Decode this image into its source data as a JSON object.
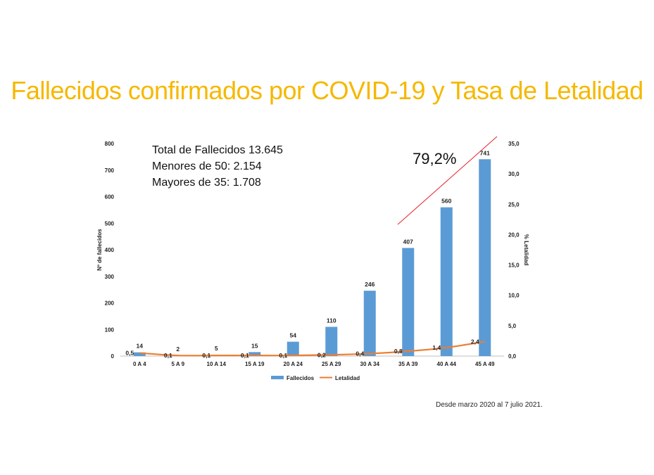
{
  "title": "Fallecidos confirmados por COVID-19 y Tasa de Letalidad",
  "source_note": "Desde marzo 2020 al 7 julio 2021.",
  "annotations": {
    "total": "Total de Fallecidos 13.645",
    "menores": "Menores de 50: 2.154",
    "mayores": "Mayores de 35: 1.708",
    "growth": "79,2%"
  },
  "colors": {
    "title": "#f5b800",
    "bars": "#5b9bd5",
    "line": "#ed7d31",
    "trend": "#e8202a"
  },
  "chart_data": {
    "type": "bar",
    "categories": [
      "0 A 4",
      "5 A 9",
      "10 A 14",
      "15 A 19",
      "20 A 24",
      "25 A 29",
      "30 A 34",
      "35 A 39",
      "40 A 44",
      "45 A 49"
    ],
    "ylabel": "Nº de fallecidos",
    "y2label": "% Letalidad",
    "ylim": [
      0,
      800
    ],
    "yticks": [
      "0",
      "100",
      "200",
      "300",
      "400",
      "500",
      "600",
      "700",
      "800"
    ],
    "y2lim": [
      0,
      35
    ],
    "y2ticks": [
      "0,0",
      "5,0",
      "10,0",
      "15,0",
      "20,0",
      "25,0",
      "30,0",
      "35,0"
    ],
    "legend_position": "bottom",
    "grid": false,
    "series": [
      {
        "name": "Fallecidos",
        "type": "bar",
        "axis": "left",
        "values": [
          14,
          2,
          5,
          15,
          54,
          110,
          246,
          407,
          560,
          741
        ],
        "labels": [
          "14",
          "2",
          "5",
          "15",
          "54",
          "110",
          "246",
          "407",
          "560",
          "741"
        ]
      },
      {
        "name": "Letalidad",
        "type": "line",
        "axis": "right",
        "values": [
          0.5,
          0.1,
          0.1,
          0.1,
          0.1,
          0.2,
          0.4,
          0.8,
          1.4,
          2.4
        ],
        "labels": [
          "0,5",
          "0,1",
          "0,1",
          "0,1",
          "0,1",
          "0,2",
          "0,4",
          "0,8",
          "1,4",
          "2,4"
        ]
      }
    ]
  }
}
